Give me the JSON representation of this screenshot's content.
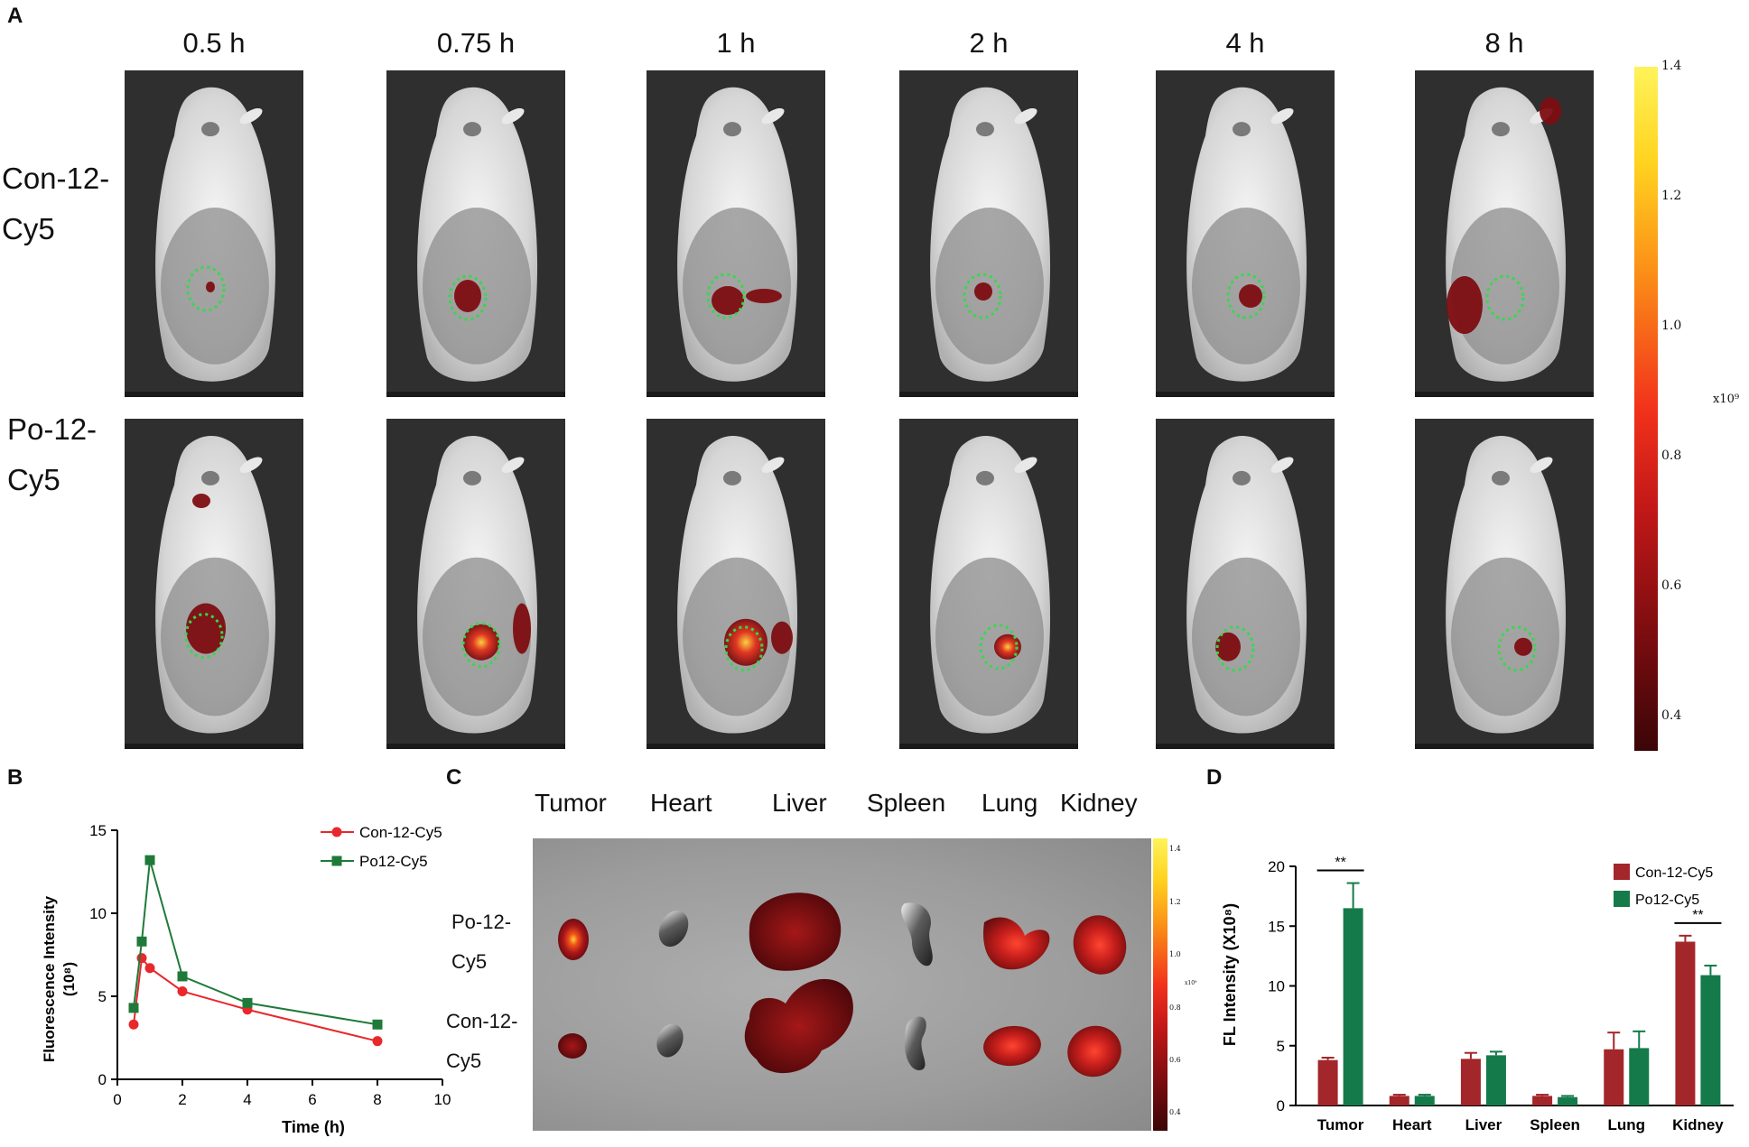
{
  "panels": {
    "a": {
      "letter": "A",
      "time_points": [
        "0.5 h",
        "0.75 h",
        "1 h",
        "2 h",
        "4 h",
        "8 h"
      ],
      "rows": [
        {
          "label_line1": "Con-12-",
          "label_line2": "Cy5"
        },
        {
          "label_line1": "Po-12-",
          "label_line2": "Cy5"
        }
      ],
      "colorbar": {
        "ticks": [
          "1.4",
          "1.2",
          "1.0",
          "0.8",
          "0.6",
          "0.4"
        ],
        "scale": "x10⁹"
      }
    },
    "b": {
      "letter": "B"
    },
    "c": {
      "letter": "C",
      "organs": [
        "Tumor",
        "Heart",
        "Liver",
        "Spleen",
        "Lung",
        "Kidney"
      ],
      "row_labels": [
        {
          "line1": "Po-12-",
          "line2": "Cy5"
        },
        {
          "line1": "Con-12-",
          "line2": "Cy5"
        }
      ],
      "colorbar": {
        "ticks": [
          "1.4",
          "1.2",
          "1.0",
          "0.8",
          "0.6",
          "0.4"
        ],
        "scale": "x10⁹"
      }
    },
    "d": {
      "letter": "D"
    }
  },
  "chart_data": [
    {
      "type": "line",
      "xlabel": "Time (h)",
      "ylabel": "Fluorescence Intensity",
      "ylabel_unit": "(10⁸)",
      "xlim": [
        0,
        10
      ],
      "ylim": [
        0,
        15
      ],
      "xticks": [
        0,
        2,
        4,
        6,
        8,
        10
      ],
      "yticks": [
        0,
        5,
        10,
        15
      ],
      "legend_position": "top-right",
      "series": [
        {
          "name": "Con-12-Cy5",
          "color": "#e8282b",
          "marker": "circle",
          "x": [
            0.5,
            0.75,
            1,
            2,
            4,
            8
          ],
          "y": [
            3.3,
            7.3,
            6.7,
            5.3,
            4.2,
            2.3
          ]
        },
        {
          "name": "Po12-Cy5",
          "color": "#1f7a3a",
          "marker": "square",
          "x": [
            0.5,
            0.75,
            1,
            2,
            4,
            8
          ],
          "y": [
            4.3,
            8.3,
            13.2,
            6.2,
            4.6,
            3.3
          ]
        }
      ]
    },
    {
      "type": "bar",
      "ylabel": "FL Intensity (X10⁸)",
      "ylim": [
        0,
        20
      ],
      "yticks": [
        0,
        5,
        10,
        15,
        20
      ],
      "categories": [
        "Tumor",
        "Heart",
        "Liver",
        "Spleen",
        "Lung",
        "Kidney"
      ],
      "legend_position": "top-right",
      "significance": [
        {
          "category": "Tumor",
          "label": "**"
        },
        {
          "category": "Kidney",
          "label": "**"
        }
      ],
      "series": [
        {
          "name": "Con-12-Cy5",
          "color": "#a3262a",
          "values": [
            3.8,
            0.8,
            3.9,
            0.8,
            4.7,
            13.7
          ],
          "errors": [
            0.2,
            0.1,
            0.5,
            0.1,
            1.4,
            0.5
          ]
        },
        {
          "name": "Po12-Cy5",
          "color": "#157a4a",
          "values": [
            16.5,
            0.8,
            4.2,
            0.7,
            4.8,
            10.9
          ],
          "errors": [
            2.1,
            0.1,
            0.3,
            0.1,
            1.4,
            0.8
          ]
        }
      ]
    }
  ]
}
